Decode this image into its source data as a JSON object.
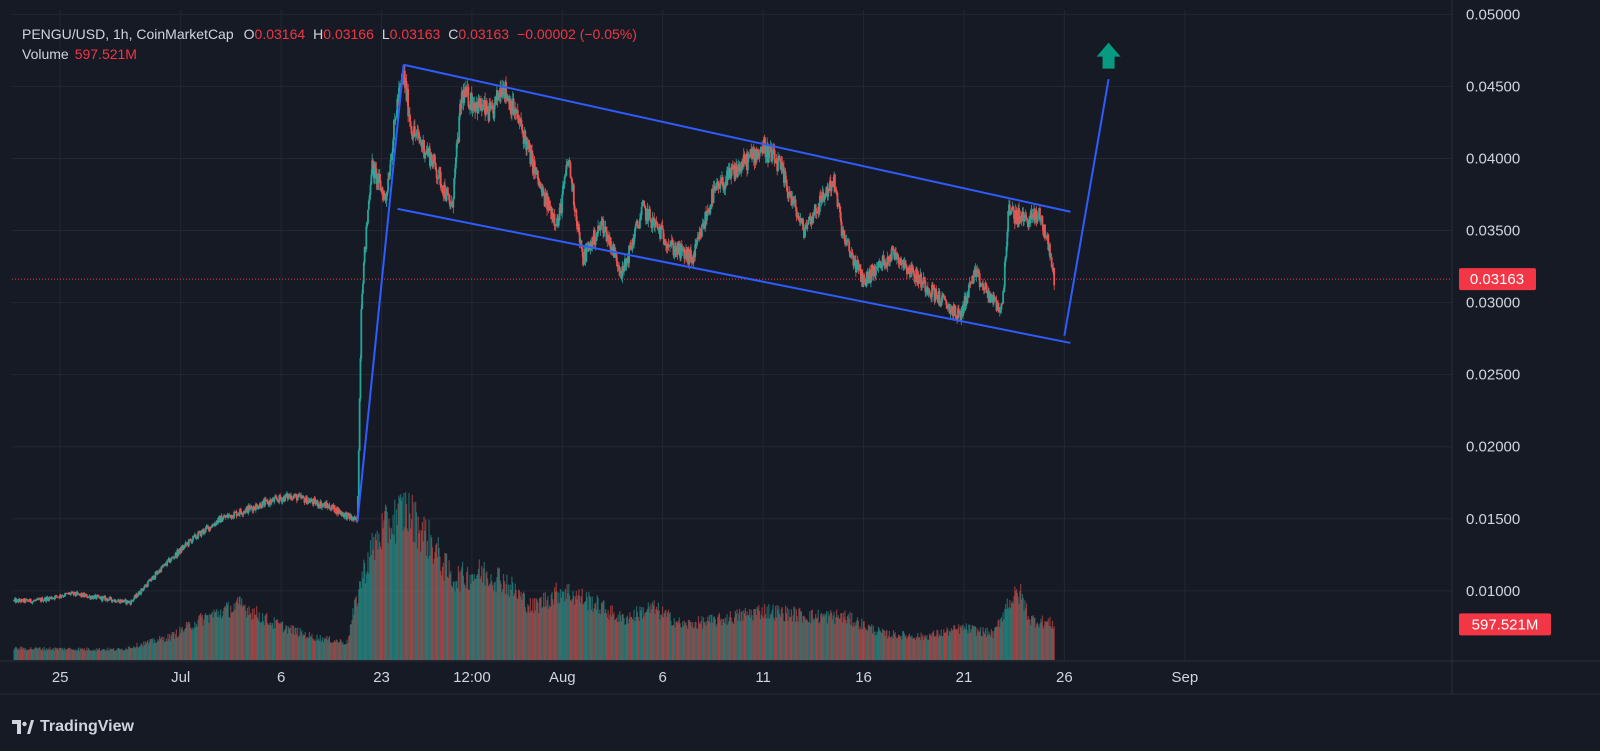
{
  "header": {
    "symbol": "PENGU/USD, 1h, CoinMarketCap",
    "o_label": "O",
    "o_value": "0.03164",
    "h_label": "H",
    "h_value": "0.03166",
    "l_label": "L",
    "l_value": "0.03163",
    "c_label": "C",
    "c_value": "0.03163",
    "change": "−0.00002 (−0.05%)",
    "volume_label": "Volume",
    "volume_value": "597.521M"
  },
  "branding": {
    "name": "TradingView"
  },
  "colors": {
    "background": "#161a25",
    "grid": "#232732",
    "up": "#26a69a",
    "down": "#ef5350",
    "trendline": "#2f5cff",
    "arrow": "#089981",
    "price_badge": "#f23645"
  },
  "chart_data": {
    "type": "candlestick",
    "title": "PENGU/USD, 1h, CoinMarketCap",
    "y_axis": {
      "position": "right",
      "range": [
        0.0052,
        0.0503
      ],
      "ticks": [
        "0.05000",
        "0.04500",
        "0.04000",
        "0.03500",
        "0.03000",
        "0.02500",
        "0.02000",
        "0.01500",
        "0.01000"
      ]
    },
    "x_axis": {
      "unit": "days since Jun 25 (1h bars)",
      "range": [
        -2.4,
        69.3
      ],
      "ticks": [
        {
          "label": "25",
          "t": 0
        },
        {
          "label": "Jul",
          "t": 6
        },
        {
          "label": "6",
          "t": 11
        },
        {
          "label": "23",
          "t": 16
        },
        {
          "label": "12:00",
          "t": 20.5
        },
        {
          "label": "Aug",
          "t": 25
        },
        {
          "label": "6",
          "t": 30
        },
        {
          "label": "11",
          "t": 35
        },
        {
          "label": "16",
          "t": 40
        },
        {
          "label": "21",
          "t": 45
        },
        {
          "label": "26",
          "t": 50
        },
        {
          "label": "Sep",
          "t": 56
        }
      ]
    },
    "price_path": [
      [
        -1.2,
        0.0093
      ],
      [
        0.5,
        0.0098
      ],
      [
        3.5,
        0.0092
      ],
      [
        5.0,
        0.0115
      ],
      [
        6.5,
        0.0135
      ],
      [
        8.0,
        0.015
      ],
      [
        10.0,
        0.016
      ],
      [
        11.5,
        0.0166
      ],
      [
        13.5,
        0.0158
      ],
      [
        14.8,
        0.0148
      ],
      [
        15.0,
        0.0305
      ],
      [
        15.5,
        0.0395
      ],
      [
        16.2,
        0.0372
      ],
      [
        16.8,
        0.044
      ],
      [
        17.1,
        0.0458
      ],
      [
        17.5,
        0.042
      ],
      [
        18.5,
        0.04
      ],
      [
        19.5,
        0.0365
      ],
      [
        20.0,
        0.0445
      ],
      [
        21.5,
        0.043
      ],
      [
        22.0,
        0.0452
      ],
      [
        23.0,
        0.042
      ],
      [
        24.0,
        0.0375
      ],
      [
        24.8,
        0.0355
      ],
      [
        25.3,
        0.04
      ],
      [
        26.0,
        0.033
      ],
      [
        27.0,
        0.0355
      ],
      [
        28.0,
        0.032
      ],
      [
        29.0,
        0.0365
      ],
      [
        30.5,
        0.0338
      ],
      [
        31.5,
        0.033
      ],
      [
        32.5,
        0.0375
      ],
      [
        33.5,
        0.039
      ],
      [
        35.0,
        0.0408
      ],
      [
        35.8,
        0.0395
      ],
      [
        37.0,
        0.035
      ],
      [
        38.5,
        0.0385
      ],
      [
        39.0,
        0.0345
      ],
      [
        40.0,
        0.0315
      ],
      [
        41.5,
        0.0335
      ],
      [
        42.5,
        0.032
      ],
      [
        44.0,
        0.03
      ],
      [
        44.8,
        0.029
      ],
      [
        45.5,
        0.032
      ],
      [
        46.5,
        0.03
      ],
      [
        46.9,
        0.0295
      ],
      [
        47.2,
        0.0362
      ],
      [
        48.0,
        0.0358
      ],
      [
        48.8,
        0.036
      ],
      [
        49.2,
        0.034
      ],
      [
        49.5,
        0.03163
      ]
    ],
    "volume": {
      "scale_max_m": 2600,
      "path": [
        [
          -2.3,
          200
        ],
        [
          3.0,
          180
        ],
        [
          5.5,
          400
        ],
        [
          7.0,
          700
        ],
        [
          9.0,
          950
        ],
        [
          10.5,
          650
        ],
        [
          12.5,
          400
        ],
        [
          14.3,
          300
        ],
        [
          14.6,
          800
        ],
        [
          15.0,
          1400
        ],
        [
          15.4,
          1800
        ],
        [
          16.0,
          2200
        ],
        [
          17.2,
          2600
        ],
        [
          18.5,
          2000
        ],
        [
          19.5,
          1400
        ],
        [
          21.0,
          1500
        ],
        [
          22.0,
          1400
        ],
        [
          23.5,
          900
        ],
        [
          25.0,
          1200
        ],
        [
          26.5,
          1000
        ],
        [
          28.0,
          700
        ],
        [
          29.5,
          900
        ],
        [
          31.0,
          600
        ],
        [
          33.0,
          700
        ],
        [
          35.0,
          850
        ],
        [
          37.5,
          750
        ],
        [
          39.0,
          750
        ],
        [
          41.0,
          450
        ],
        [
          43.0,
          400
        ],
        [
          45.0,
          550
        ],
        [
          46.5,
          450
        ],
        [
          47.2,
          1000
        ],
        [
          47.8,
          1150
        ],
        [
          48.3,
          700
        ],
        [
          49.5,
          620
        ]
      ],
      "last_value": "597.521M"
    },
    "last_price": {
      "value": 0.03163,
      "label": "0.03163"
    },
    "annotations": [
      {
        "name": "breakout-line",
        "from": [
          14.8,
          0.0148
        ],
        "to": [
          17.1,
          0.0465
        ]
      },
      {
        "name": "channel-upper",
        "from": [
          17.1,
          0.0465
        ],
        "to": [
          50.3,
          0.0363
        ]
      },
      {
        "name": "channel-lower",
        "from": [
          16.8,
          0.0365
        ],
        "to": [
          50.3,
          0.0272
        ]
      },
      {
        "name": "projection-line",
        "from": [
          50.0,
          0.0277
        ],
        "to": [
          52.2,
          0.0455
        ]
      },
      {
        "name": "up-arrow",
        "at": [
          52.2,
          0.0472
        ]
      }
    ]
  }
}
